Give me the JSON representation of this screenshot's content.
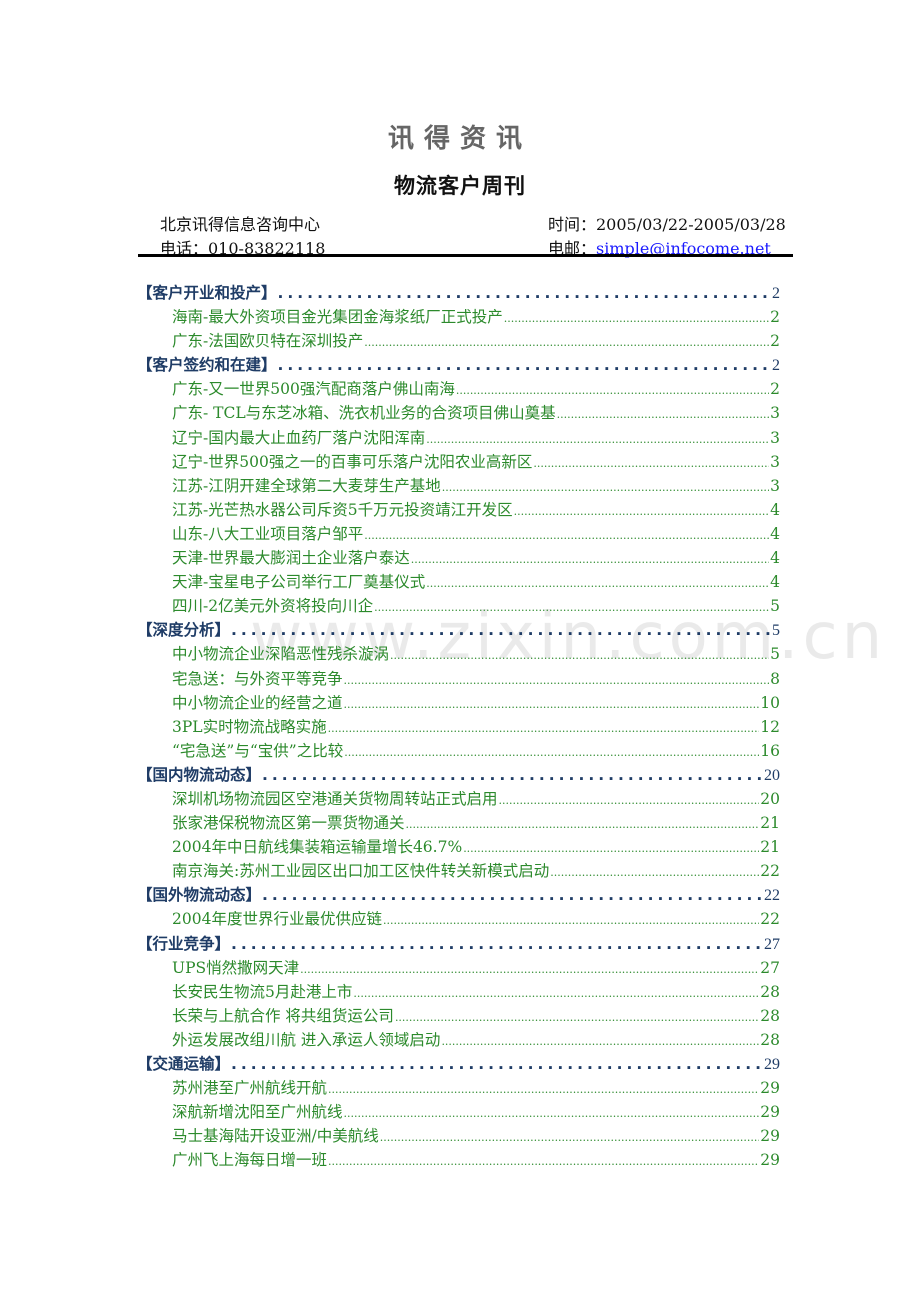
{
  "header": {
    "brand": "讯得资讯",
    "title": "物流客户周刊",
    "org": "北京讯得信息咨询中心",
    "phone": "电话：010-83822118",
    "time": "时间：2005/03/22-2005/03/28",
    "email_label": "电邮：",
    "email": "simple@infocome.net"
  },
  "watermark": "www.zixin.com.cn",
  "colors": {
    "section": "#1f3c66",
    "item": "#2c8a2c",
    "email": "#1a1aff"
  },
  "toc": [
    {
      "type": "section",
      "label": "【客户开业和投产】",
      "page": "2"
    },
    {
      "type": "item",
      "label": "海南-最大外资项目金光集团金海浆纸厂正式投产",
      "page": "2"
    },
    {
      "type": "item",
      "label": "广东-法国欧贝特在深圳投产",
      "page": "2"
    },
    {
      "type": "section",
      "label": "【客户签约和在建】",
      "page": "2"
    },
    {
      "type": "item",
      "label": "广东-又一世界500强汽配商落户佛山南海",
      "page": "2"
    },
    {
      "type": "item",
      "label": "广东- TCL与东芝冰箱、洗衣机业务的合资项目佛山奠基",
      "page": "3"
    },
    {
      "type": "item",
      "label": "辽宁-国内最大止血药厂落户沈阳浑南",
      "page": "3"
    },
    {
      "type": "item",
      "label": "辽宁-世界500强之一的百事可乐落户沈阳农业高新区",
      "page": "3"
    },
    {
      "type": "item",
      "label": "江苏-江阴开建全球第二大麦芽生产基地",
      "page": "3"
    },
    {
      "type": "item",
      "label": "江苏-光芒热水器公司斥资5千万元投资靖江开发区",
      "page": "4"
    },
    {
      "type": "item",
      "label": "山东-八大工业项目落户邹平",
      "page": "4"
    },
    {
      "type": "item",
      "label": "天津-世界最大膨润土企业落户泰达",
      "page": "4"
    },
    {
      "type": "item",
      "label": "天津-宝星电子公司举行工厂奠基仪式",
      "page": "4"
    },
    {
      "type": "item",
      "label": "四川-2亿美元外资将投向川企",
      "page": "5"
    },
    {
      "type": "section",
      "label": "【深度分析】",
      "page": "5"
    },
    {
      "type": "item",
      "label": "中小物流企业深陷恶性残杀漩涡",
      "page": "5"
    },
    {
      "type": "item",
      "label": "宅急送：与外资平等竞争",
      "page": "8"
    },
    {
      "type": "item",
      "label": "中小物流企业的经营之道",
      "page": "10"
    },
    {
      "type": "item",
      "label": "3PL实时物流战略实施",
      "page": "12"
    },
    {
      "type": "item",
      "label": "“宅急送”与“宝供”之比较",
      "page": "16"
    },
    {
      "type": "section",
      "label": "【国内物流动态】",
      "page": "20"
    },
    {
      "type": "item",
      "label": "深圳机场物流园区空港通关货物周转站正式启用",
      "page": "20"
    },
    {
      "type": "item",
      "label": "张家港保税物流区第一票货物通关",
      "page": "21"
    },
    {
      "type": "item",
      "label": "2004年中日航线集装箱运输量增长46.7%",
      "page": "21"
    },
    {
      "type": "item",
      "label": "南京海关:苏州工业园区出口加工区快件转关新模式启动",
      "page": "22"
    },
    {
      "type": "section",
      "label": "【国外物流动态】",
      "page": "22"
    },
    {
      "type": "item",
      "label": "2004年度世界行业最优供应链",
      "page": "22"
    },
    {
      "type": "section",
      "label": "【行业竞争】",
      "page": "27"
    },
    {
      "type": "item",
      "label": "UPS悄然撒网天津",
      "page": "27"
    },
    {
      "type": "item",
      "label": "长安民生物流5月赴港上市",
      "page": "28"
    },
    {
      "type": "item",
      "label": "长荣与上航合作  将共组货运公司",
      "page": "28"
    },
    {
      "type": "item",
      "label": "外运发展改组川航  进入承运人领域启动",
      "page": "28"
    },
    {
      "type": "section",
      "label": "【交通运输】",
      "page": "29"
    },
    {
      "type": "item",
      "label": "苏州港至广州航线开航",
      "page": "29"
    },
    {
      "type": "item",
      "label": "深航新增沈阳至广州航线",
      "page": "29"
    },
    {
      "type": "item",
      "label": "马士基海陆开设亚洲/中美航线",
      "page": "29"
    },
    {
      "type": "item",
      "label": "广州飞上海每日增一班",
      "page": "29"
    }
  ]
}
